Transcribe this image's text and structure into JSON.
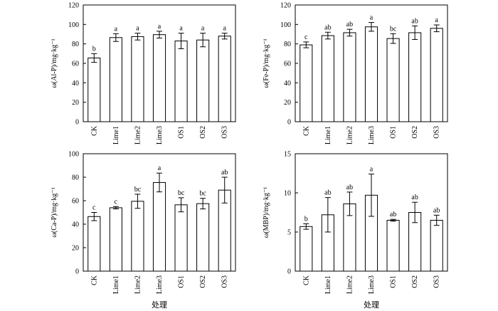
{
  "xlabel": "处理",
  "chart_data": [
    {
      "type": "bar",
      "ylabel": "ω(Al-P)/mg·kg⁻¹",
      "categories": [
        "CK",
        "Lime1",
        "Lime2",
        "Lime3",
        "OS1",
        "OS2",
        "OS3"
      ],
      "values": [
        65.5,
        86.5,
        87.5,
        89.5,
        83,
        84,
        88
      ],
      "errors": [
        4.5,
        4,
        3.5,
        3.5,
        8,
        7,
        3
      ],
      "labels": [
        "b",
        "a",
        "a",
        "a",
        "a",
        "a",
        "a"
      ],
      "ylim": [
        0,
        120
      ],
      "yticks": [
        0,
        20,
        40,
        60,
        80,
        100,
        120
      ]
    },
    {
      "type": "bar",
      "ylabel": "ω(Fe-P)/mg·kg⁻¹",
      "categories": [
        "CK",
        "Lime1",
        "Lime2",
        "Lime3",
        "OS1",
        "OS2",
        "OS3"
      ],
      "values": [
        79,
        88.5,
        91.5,
        97.5,
        85.5,
        91.5,
        96
      ],
      "errors": [
        3,
        3.5,
        3.5,
        4.5,
        5,
        7,
        3.5
      ],
      "labels": [
        "c",
        "ab",
        "ab",
        "a",
        "bc",
        "ab",
        "a"
      ],
      "ylim": [
        0,
        120
      ],
      "yticks": [
        0,
        20,
        40,
        60,
        80,
        100,
        120
      ]
    },
    {
      "type": "bar",
      "ylabel": "ω(Ca-P)/mg·kg⁻¹",
      "categories": [
        "CK",
        "Lime1",
        "Lime2",
        "Lime3",
        "OS1",
        "OS2",
        "OS3"
      ],
      "values": [
        46.5,
        54,
        59.5,
        75.5,
        56.5,
        57.5,
        69
      ],
      "errors": [
        3.5,
        1,
        6,
        8,
        6,
        4.5,
        11
      ],
      "labels": [
        "c",
        "c",
        "bc",
        "a",
        "bc",
        "bc",
        "ab"
      ],
      "ylim": [
        0,
        100
      ],
      "yticks": [
        0,
        20,
        40,
        60,
        80,
        100
      ]
    },
    {
      "type": "bar",
      "ylabel": "ω(MBP)/mg·kg⁻¹",
      "categories": [
        "CK",
        "Lime1",
        "Lime2",
        "Lime3",
        "OS1",
        "OS2",
        "OS3"
      ],
      "values": [
        5.7,
        7.2,
        8.6,
        9.7,
        6.5,
        7.5,
        6.5
      ],
      "errors": [
        0.35,
        2.2,
        1.5,
        2.7,
        0.12,
        1.3,
        0.65
      ],
      "labels": [
        "b",
        "ab",
        "ab",
        "a",
        "ab",
        "ab",
        "ab"
      ],
      "ylim": [
        0,
        15
      ],
      "yticks": [
        0,
        5,
        10,
        15
      ]
    }
  ]
}
